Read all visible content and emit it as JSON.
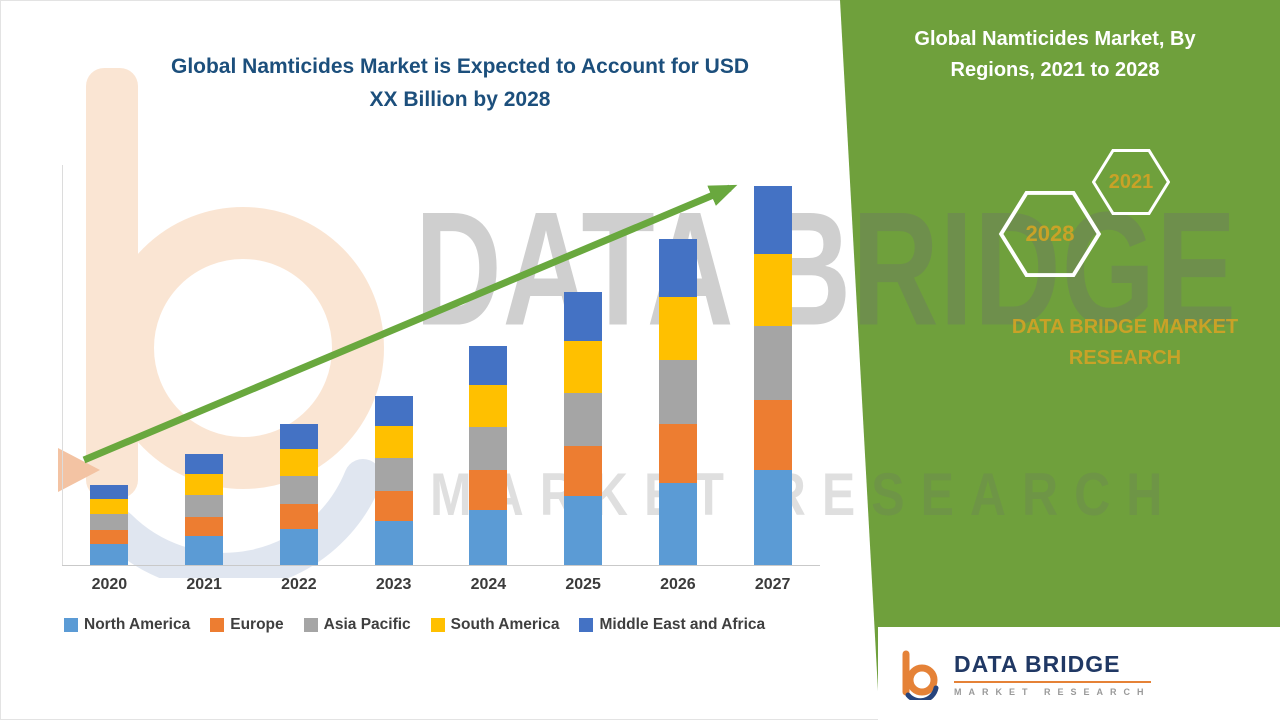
{
  "page": {
    "title_left": "Global Namticides Market is Expected to Account for USD XX Billion by 2028"
  },
  "side_panel": {
    "title": "Global Namticides Market, By Regions, 2021 to 2028",
    "badge_back": "2028",
    "badge_front": "2021",
    "brand_text": "DATA BRIDGE MARKET RESEARCH",
    "bg_color": "#6FA03C",
    "gold_color": "#C9A227"
  },
  "watermark": {
    "line1": "DATA BRIDGE",
    "line2": "MARKET RESEARCH"
  },
  "footer_logo": {
    "name": "DATA BRIDGE",
    "tagline": "MARKET RESEARCH"
  },
  "chart_data": {
    "type": "bar",
    "stacked": true,
    "title": "Global Namticides Market is Expected to Account for USD XX Billion by 2028",
    "xlabel": "",
    "ylabel": "",
    "categories": [
      "2020",
      "2021",
      "2022",
      "2023",
      "2024",
      "2025",
      "2026",
      "2027"
    ],
    "series": [
      {
        "name": "North America",
        "color": "#5B9BD5",
        "values": [
          0.22,
          0.3,
          0.38,
          0.46,
          0.58,
          0.72,
          0.86,
          1.0
        ]
      },
      {
        "name": "Europe",
        "color": "#ED7D31",
        "values": [
          0.15,
          0.2,
          0.26,
          0.32,
          0.42,
          0.52,
          0.62,
          0.73
        ]
      },
      {
        "name": "Asia Pacific",
        "color": "#A5A5A5",
        "values": [
          0.17,
          0.23,
          0.29,
          0.35,
          0.45,
          0.56,
          0.67,
          0.78
        ]
      },
      {
        "name": "South America",
        "color": "#FFC000",
        "values": [
          0.16,
          0.22,
          0.28,
          0.34,
          0.44,
          0.55,
          0.66,
          0.76
        ]
      },
      {
        "name": "Middle East and Africa",
        "color": "#4472C4",
        "values": [
          0.15,
          0.21,
          0.26,
          0.31,
          0.41,
          0.51,
          0.61,
          0.71
        ]
      }
    ],
    "ylim": [
      0,
      4.2
    ],
    "grid": false,
    "axis_value_labels_visible": false,
    "values_estimated": true,
    "legend_position": "bottom",
    "annotations": [
      {
        "type": "arrow",
        "direction": "up",
        "from_category": "2020",
        "to_category": "2027",
        "color": "#69A83E"
      }
    ]
  }
}
